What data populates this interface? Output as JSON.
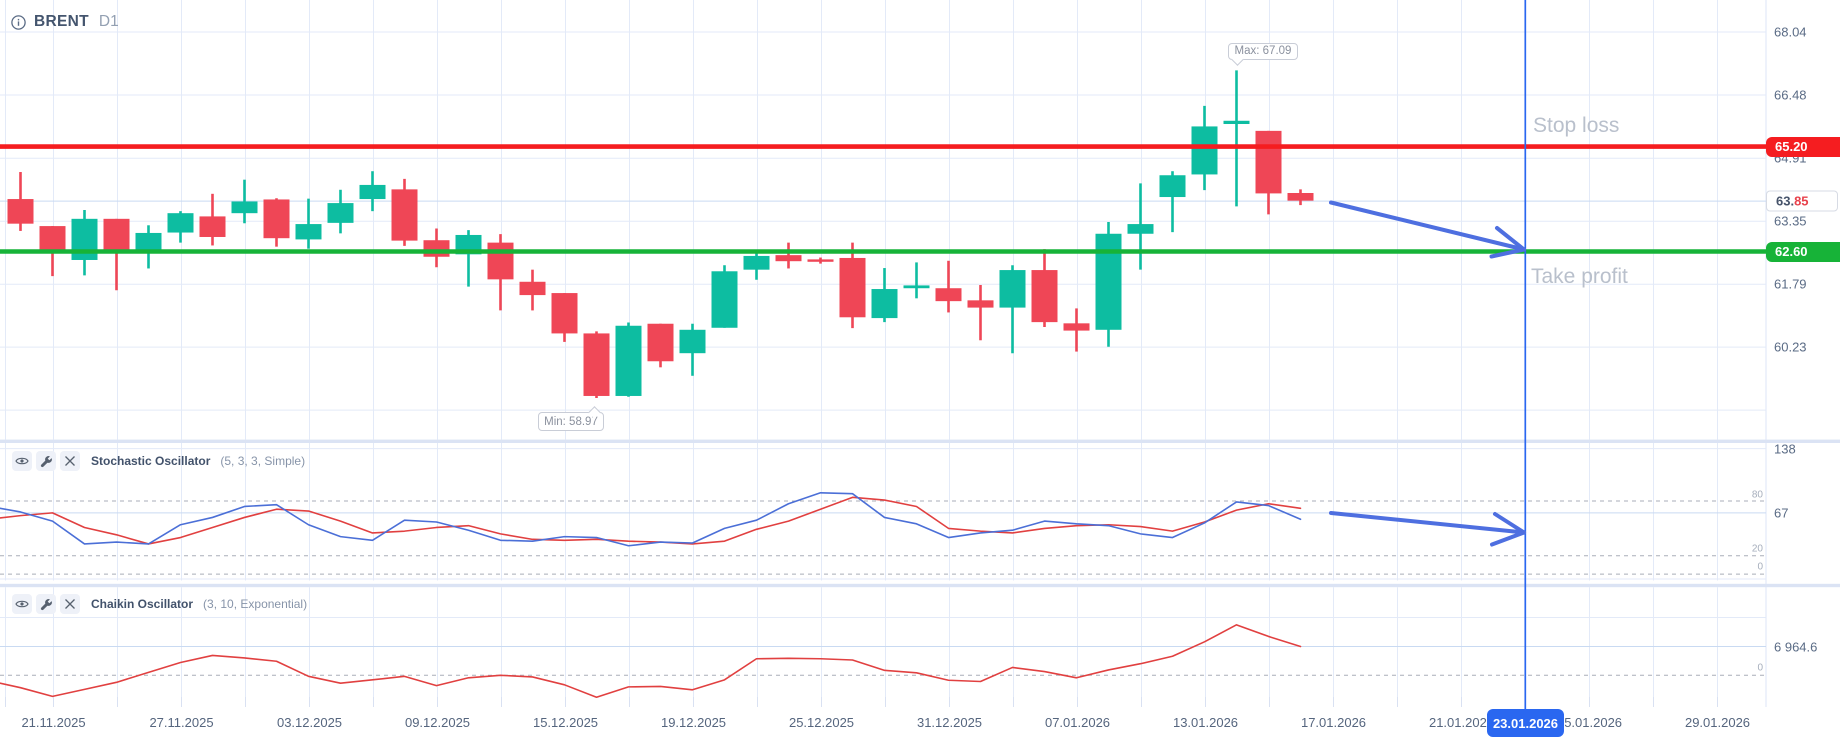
{
  "header": {
    "symbol": "BRENT",
    "timeframe": "D1",
    "info_icon": "info-circle-icon"
  },
  "colors": {
    "candle_up": "#0dbda1",
    "candle_down": "#ef4656",
    "stop_loss": "#f51d20",
    "take_profit": "#17b338",
    "grid": "#e3eaf8",
    "separator": "#dbe3f4",
    "dashed_level": "#a9aeb8",
    "current_value_line": "#c9daf2",
    "axis_text": "#5a6b85",
    "stoch_k": "#4b6fd7",
    "stoch_d": "#e14040",
    "chaikin": "#e14040",
    "arrow": "#4e6fe0",
    "time_cursor": "#2a67f0",
    "highlight_box": "#2a67f0"
  },
  "chart_data": {
    "type": "candlestick",
    "title": "BRENT D1",
    "ylim": [
      58.4,
      68.85
    ],
    "price_axis_labels": [
      "68.04",
      "66.48",
      "64.91",
      "63.35",
      "61.79",
      "60.23"
    ],
    "price_axis_values": [
      68.04,
      66.48,
      64.91,
      63.35,
      61.79,
      60.23
    ],
    "unlabeled_gridline": 58.67,
    "current_price": 63.85,
    "current_price_label": {
      "dark": "63.",
      "red": "85"
    },
    "stop_loss": {
      "price": 65.2,
      "tag": "65.20",
      "text": "Stop loss"
    },
    "take_profit": {
      "price": 62.6,
      "tag": "62.60",
      "text": "Take profit"
    },
    "max_annotation": {
      "text": "Max: 67.09",
      "price": 67.09,
      "candle": 38
    },
    "min_annotation": {
      "text": "Min: 58.97",
      "price": 58.97,
      "candle": 18
    },
    "candles": [
      {
        "o": 63.9,
        "h": 64.57,
        "l": 63.11,
        "c": 63.29
      },
      {
        "o": 63.23,
        "h": 63.23,
        "l": 61.99,
        "c": 62.63
      },
      {
        "o": 62.39,
        "h": 63.63,
        "l": 62.01,
        "c": 63.41
      },
      {
        "o": 63.41,
        "h": 63.41,
        "l": 61.64,
        "c": 62.61
      },
      {
        "o": 62.63,
        "h": 63.25,
        "l": 62.18,
        "c": 63.06
      },
      {
        "o": 63.07,
        "h": 63.6,
        "l": 62.82,
        "c": 63.55
      },
      {
        "o": 63.47,
        "h": 64.03,
        "l": 62.75,
        "c": 62.96
      },
      {
        "o": 63.55,
        "h": 64.38,
        "l": 63.3,
        "c": 63.84
      },
      {
        "o": 63.89,
        "h": 63.92,
        "l": 62.72,
        "c": 62.93
      },
      {
        "o": 62.9,
        "h": 63.91,
        "l": 62.67,
        "c": 63.28
      },
      {
        "o": 63.31,
        "h": 64.13,
        "l": 63.05,
        "c": 63.8
      },
      {
        "o": 63.9,
        "h": 64.59,
        "l": 63.6,
        "c": 64.25
      },
      {
        "o": 64.14,
        "h": 64.4,
        "l": 62.74,
        "c": 62.87
      },
      {
        "o": 62.88,
        "h": 63.17,
        "l": 62.21,
        "c": 62.47
      },
      {
        "o": 62.53,
        "h": 63.13,
        "l": 61.73,
        "c": 63.01
      },
      {
        "o": 62.82,
        "h": 63.03,
        "l": 61.14,
        "c": 61.91
      },
      {
        "o": 61.85,
        "h": 62.15,
        "l": 61.14,
        "c": 61.52
      },
      {
        "o": 61.57,
        "h": 61.57,
        "l": 60.36,
        "c": 60.57
      },
      {
        "o": 60.57,
        "h": 60.62,
        "l": 58.97,
        "c": 59.02
      },
      {
        "o": 59.02,
        "h": 60.84,
        "l": 59.0,
        "c": 60.76
      },
      {
        "o": 60.81,
        "h": 60.81,
        "l": 59.73,
        "c": 59.88
      },
      {
        "o": 60.08,
        "h": 60.81,
        "l": 59.52,
        "c": 60.66
      },
      {
        "o": 60.71,
        "h": 62.26,
        "l": 60.71,
        "c": 62.11
      },
      {
        "o": 62.15,
        "h": 62.64,
        "l": 61.9,
        "c": 62.49
      },
      {
        "o": 62.51,
        "h": 62.82,
        "l": 62.18,
        "c": 62.36
      },
      {
        "o": 62.4,
        "h": 62.45,
        "l": 62.3,
        "c": 62.35
      },
      {
        "o": 62.44,
        "h": 62.82,
        "l": 60.7,
        "c": 60.97
      },
      {
        "o": 60.95,
        "h": 62.19,
        "l": 60.85,
        "c": 61.67
      },
      {
        "o": 61.69,
        "h": 62.33,
        "l": 61.44,
        "c": 61.76
      },
      {
        "o": 61.69,
        "h": 62.37,
        "l": 61.09,
        "c": 61.37
      },
      {
        "o": 61.39,
        "h": 61.77,
        "l": 60.4,
        "c": 61.21
      },
      {
        "o": 61.21,
        "h": 62.26,
        "l": 60.08,
        "c": 62.14
      },
      {
        "o": 62.14,
        "h": 62.66,
        "l": 60.73,
        "c": 60.85
      },
      {
        "o": 60.82,
        "h": 61.19,
        "l": 60.12,
        "c": 60.64
      },
      {
        "o": 60.66,
        "h": 63.33,
        "l": 60.24,
        "c": 63.04
      },
      {
        "o": 63.04,
        "h": 64.29,
        "l": 62.15,
        "c": 63.28
      },
      {
        "o": 63.95,
        "h": 64.59,
        "l": 63.08,
        "c": 64.49
      },
      {
        "o": 64.51,
        "h": 66.21,
        "l": 64.12,
        "c": 65.7
      },
      {
        "o": 65.76,
        "h": 67.09,
        "l": 63.72,
        "c": 65.84
      },
      {
        "o": 65.59,
        "h": 65.59,
        "l": 63.52,
        "c": 64.04
      },
      {
        "o": 64.05,
        "h": 64.14,
        "l": 63.75,
        "c": 63.86
      }
    ],
    "x_axis": {
      "labels": [
        "21.11.2025",
        "27.11.2025",
        "03.12.2025",
        "09.12.2025",
        "15.12.2025",
        "19.12.2025",
        "25.12.2025",
        "31.12.2025",
        "07.01.2026",
        "13.01.2026",
        "17.01.2026",
        "21.01.2026",
        "25.01.2026",
        "29.01.2026"
      ],
      "highlighted_date": "23.01.2026"
    },
    "stochastic": {
      "name": "Stochastic Oscillator",
      "params": "(5, 3, 3, Simple)",
      "axis_top_label": "138",
      "current_value_label": "67",
      "level_labels": [
        "80",
        "20",
        "0"
      ],
      "levels": [
        80,
        20,
        0
      ],
      "k_edge": 72,
      "d_edge": 61.5,
      "k": [
        68,
        58,
        33,
        35,
        33,
        54,
        62,
        74,
        76,
        54,
        41,
        37,
        59,
        57,
        48,
        37,
        36,
        41,
        40,
        31,
        35,
        34,
        50,
        59,
        77,
        89,
        88,
        62,
        55,
        40,
        45,
        48,
        58,
        55,
        53,
        44,
        40,
        56,
        79,
        75,
        60
      ],
      "d": [
        64,
        67,
        51,
        43,
        33,
        40,
        51,
        62,
        71,
        69,
        58,
        45,
        47,
        51,
        53,
        44,
        38,
        37,
        38,
        36,
        35,
        33,
        36,
        49,
        58,
        71,
        84,
        81,
        74,
        50,
        47,
        45,
        50,
        53,
        54,
        52,
        47,
        57,
        70,
        77,
        72
      ]
    },
    "chaikin": {
      "name": "Chaikin Oscillator",
      "params": "(3, 10, Exponential)",
      "current_value_label": "6 964.6",
      "current_value": 6964.6,
      "zero_label": "0",
      "edge": -1900,
      "values": [
        -3000,
        -5100,
        -3400,
        -1700,
        700,
        3100,
        4800,
        4200,
        3400,
        -240,
        -1900,
        -1100,
        -250,
        -2500,
        -600,
        0,
        -400,
        -2300,
        -5300,
        -2800,
        -2700,
        -3500,
        -1100,
        4000,
        4100,
        4000,
        3700,
        1200,
        600,
        -1200,
        -1500,
        1900,
        900,
        -600,
        1300,
        2800,
        4600,
        8100,
        12200,
        9400,
        6965
      ]
    }
  }
}
